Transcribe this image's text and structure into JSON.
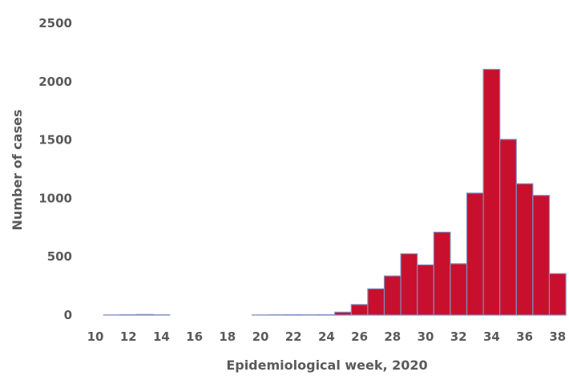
{
  "chart_data": {
    "type": "bar",
    "title": "",
    "xlabel": "Epidemiological week, 2020",
    "ylabel": "Number of cases",
    "x": [
      10,
      11,
      12,
      13,
      14,
      15,
      16,
      17,
      18,
      19,
      20,
      21,
      22,
      23,
      24,
      25,
      26,
      27,
      28,
      29,
      30,
      31,
      32,
      33,
      34,
      35,
      36,
      37,
      38
    ],
    "values": [
      0,
      1,
      3,
      5,
      2,
      0,
      0,
      0,
      0,
      0,
      1,
      2,
      3,
      2,
      3,
      25,
      90,
      225,
      335,
      525,
      430,
      710,
      440,
      1045,
      2105,
      1505,
      1125,
      1025,
      355
    ],
    "x_ticks": [
      10,
      12,
      14,
      16,
      18,
      20,
      22,
      24,
      26,
      28,
      30,
      32,
      34,
      36,
      38
    ],
    "y_ticks": [
      0,
      500,
      1000,
      1500,
      2000,
      2500
    ],
    "ylim": [
      0,
      2500
    ],
    "grid": false,
    "legend": "none",
    "bar_color": "#c8102e",
    "bar_edge_color": "#7f8fc0",
    "text_color": "#5a5a5a"
  }
}
